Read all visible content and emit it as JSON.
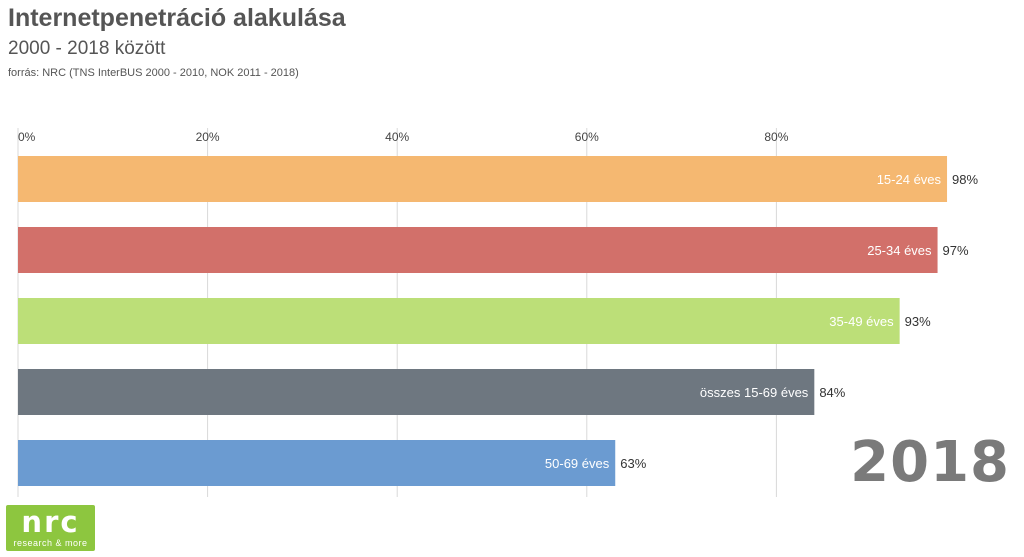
{
  "header": {
    "title": "Internetpenetráció alakulása",
    "subtitle": "2000 - 2018 között",
    "source": "forrás: NRC (TNS InterBUS 2000 - 2010, NOK 2011 - 2018)"
  },
  "year_label": "2018",
  "logo": {
    "word": "nrc",
    "tagline": "research & more",
    "color": "#8dc63f"
  },
  "chart_data": {
    "type": "bar",
    "orientation": "horizontal",
    "xlim": [
      0,
      100
    ],
    "x_ticks": [
      0,
      20,
      40,
      60,
      80
    ],
    "x_tick_labels": [
      "0%",
      "20%",
      "40%",
      "60%",
      "80%"
    ],
    "grid": true,
    "bars": [
      {
        "category": "15-24 éves",
        "value": 98,
        "value_label": "98%",
        "color": "#f5b871"
      },
      {
        "category": "25-34 éves",
        "value": 97,
        "value_label": "97%",
        "color": "#d2706a"
      },
      {
        "category": "35-49 éves",
        "value": 93,
        "value_label": "93%",
        "color": "#bcdf78"
      },
      {
        "category": "összes 15-69 éves",
        "value": 84,
        "value_label": "84%",
        "color": "#6e7780"
      },
      {
        "category": "50-69 éves",
        "value": 63,
        "value_label": "63%",
        "color": "#6b9bd1"
      }
    ]
  }
}
